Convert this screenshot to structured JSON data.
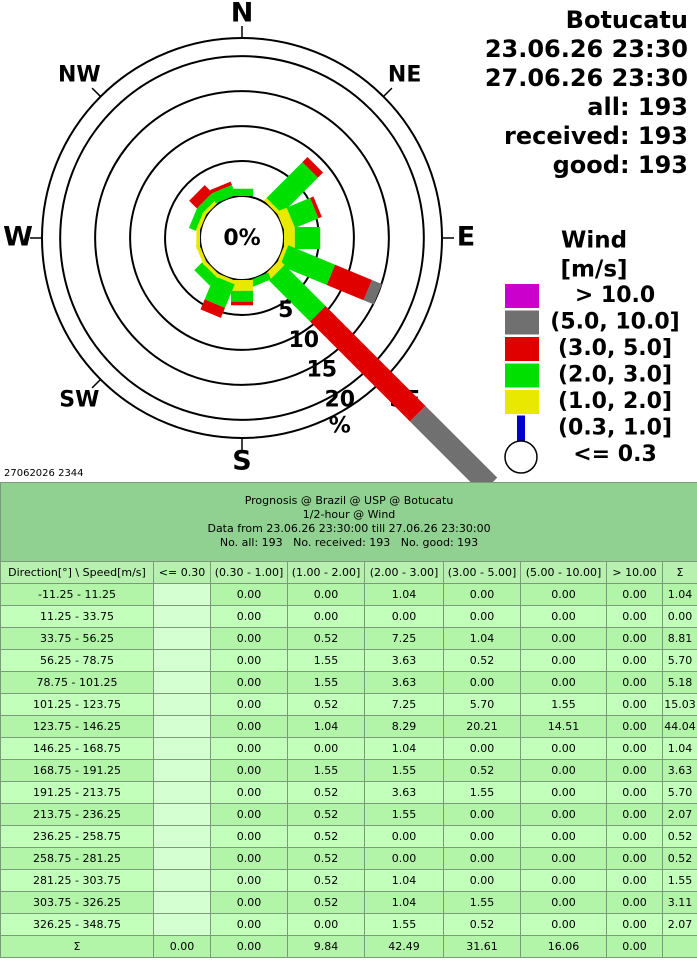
{
  "chart_data": {
    "type": "windrose",
    "info_lines": [
      "Botucatu",
      "23.06.26 23:30",
      "27.06.26 23:30",
      "all: 193",
      "received: 193",
      "good: 193"
    ],
    "compass": [
      "N",
      "NE",
      "E",
      "SE",
      "S",
      "SW",
      "W",
      "NW"
    ],
    "center_label": "0%",
    "radial_unit": "%",
    "rlim": [
      0,
      22.6
    ],
    "rticks": [
      5,
      10,
      15,
      20
    ],
    "legend_title": "Wind",
    "legend_unit": "[m/s]",
    "timestamp": "27062026 2344",
    "corner_header": "Direction[°] \\ Speed[m/s]",
    "sum_label": "Σ",
    "categories": [
      "-11.25 - 11.25",
      "11.25 - 33.75",
      "33.75 - 56.25",
      "56.25 - 78.75",
      "78.75 - 101.25",
      "101.25 - 123.75",
      "123.75 - 146.25",
      "146.25 - 168.75",
      "168.75 - 191.25",
      "191.25 - 213.75",
      "213.75 - 236.25",
      "236.25 - 258.75",
      "258.75 - 281.25",
      "281.25 - 303.75",
      "303.75 - 326.25",
      "326.25 - 348.75"
    ],
    "series": [
      {
        "name": "> 10.0",
        "color": "#cc00cc",
        "table_header": "> 10.00",
        "values": [
          0,
          0,
          0,
          0,
          0,
          0,
          0,
          0,
          0,
          0,
          0,
          0,
          0,
          0,
          0,
          0
        ],
        "value_labels": [
          "0.00",
          "0.00",
          "0.00",
          "0.00",
          "0.00",
          "0.00",
          "0.00",
          "0.00",
          "0.00",
          "0.00",
          "0.00",
          "0.00",
          "0.00",
          "0.00",
          "0.00",
          "0.00"
        ],
        "total": {
          "value": 0,
          "label": "0.00"
        }
      },
      {
        "name": "(5.0, 10.0]",
        "color": "#707070",
        "table_header": "(5.00 - 10.00]",
        "values": [
          0,
          0,
          0,
          0,
          0,
          1.55,
          14.51,
          0,
          0,
          0,
          0,
          0,
          0,
          0,
          0,
          0
        ],
        "value_labels": [
          "0.00",
          "0.00",
          "0.00",
          "0.00",
          "0.00",
          "1.55",
          "14.51",
          "0.00",
          "0.00",
          "0.00",
          "0.00",
          "0.00",
          "0.00",
          "0.00",
          "0.00",
          "0.00"
        ],
        "total": {
          "value": 16.06,
          "label": "16.06"
        }
      },
      {
        "name": "(3.0, 5.0]",
        "color": "#e00000",
        "table_header": "(3.00 - 5.00]",
        "values": [
          0,
          0,
          1.04,
          0.52,
          0,
          5.7,
          20.21,
          0,
          0.52,
          1.55,
          0,
          0,
          0,
          0,
          1.55,
          0.52
        ],
        "value_labels": [
          "0.00",
          "0.00",
          "1.04",
          "0.52",
          "0.00",
          "5.70",
          "20.21",
          "0.00",
          "0.52",
          "1.55",
          "0.00",
          "0.00",
          "0.00",
          "0.00",
          "1.55",
          "0.52"
        ],
        "total": {
          "value": 31.61,
          "label": "31.61"
        }
      },
      {
        "name": "(2.0, 3.0]",
        "color": "#00e000",
        "table_header": "(2.00 - 3.00]",
        "values": [
          1.04,
          0,
          7.25,
          3.63,
          3.63,
          7.25,
          8.29,
          1.04,
          1.55,
          3.63,
          1.55,
          0,
          0,
          1.04,
          1.04,
          1.55
        ],
        "value_labels": [
          "1.04",
          "0.00",
          "7.25",
          "3.63",
          "3.63",
          "7.25",
          "8.29",
          "1.04",
          "1.55",
          "3.63",
          "1.55",
          "0.00",
          "0.00",
          "1.04",
          "1.04",
          "1.55"
        ],
        "total": {
          "value": 42.49,
          "label": "42.49"
        }
      },
      {
        "name": "(1.0, 2.0]",
        "color": "#e8e800",
        "table_header": "(1.00 - 2.00]",
        "values": [
          0,
          0,
          0.52,
          1.55,
          1.55,
          0.52,
          1.04,
          0,
          1.55,
          0.52,
          0.52,
          0.52,
          0.52,
          0.52,
          0.52,
          0
        ],
        "value_labels": [
          "0.00",
          "0.00",
          "0.52",
          "1.55",
          "1.55",
          "0.52",
          "1.04",
          "0.00",
          "1.55",
          "0.52",
          "0.52",
          "0.52",
          "0.52",
          "0.52",
          "0.52",
          "0.00"
        ],
        "total": {
          "value": 9.84,
          "label": "9.84"
        }
      },
      {
        "name": "(0.3, 1.0]",
        "color": "#0000cc",
        "table_header": "(0.30 - 1.00]",
        "values": [
          0,
          0,
          0,
          0,
          0,
          0,
          0,
          0,
          0,
          0,
          0,
          0,
          0,
          0,
          0,
          0
        ],
        "value_labels": [
          "0.00",
          "0.00",
          "0.00",
          "0.00",
          "0.00",
          "0.00",
          "0.00",
          "0.00",
          "0.00",
          "0.00",
          "0.00",
          "0.00",
          "0.00",
          "0.00",
          "0.00",
          "0.00"
        ],
        "total": {
          "value": 0,
          "label": "0.00"
        }
      },
      {
        "name": "<= 0.3",
        "color": "#ffffff",
        "table_header": "<= 0.30",
        "total": {
          "value": 0,
          "label": "0.00"
        }
      }
    ],
    "direction_totals": [
      {
        "value": 1.04,
        "label": "1.04"
      },
      {
        "value": 0,
        "label": "0.00"
      },
      {
        "value": 8.81,
        "label": "8.81"
      },
      {
        "value": 5.7,
        "label": "5.70"
      },
      {
        "value": 5.18,
        "label": "5.18"
      },
      {
        "value": 15.03,
        "label": "15.03"
      },
      {
        "value": 44.04,
        "label": "44.04"
      },
      {
        "value": 1.04,
        "label": "1.04"
      },
      {
        "value": 3.63,
        "label": "3.63"
      },
      {
        "value": 5.7,
        "label": "5.70"
      },
      {
        "value": 2.07,
        "label": "2.07"
      },
      {
        "value": 0.52,
        "label": "0.52"
      },
      {
        "value": 0.52,
        "label": "0.52"
      },
      {
        "value": 1.55,
        "label": "1.55"
      },
      {
        "value": 3.11,
        "label": "3.11"
      },
      {
        "value": 2.07,
        "label": "2.07"
      }
    ]
  },
  "table": {
    "title_lines": [
      "Prognosis @ Brazil @ USP @ Botucatu",
      "1/2-hour @ Wind",
      "Data from 23.06.26 23:30:00 till 27.06.26 23:30:00",
      "No. all: 193   No. received: 193   No. good: 193"
    ]
  }
}
